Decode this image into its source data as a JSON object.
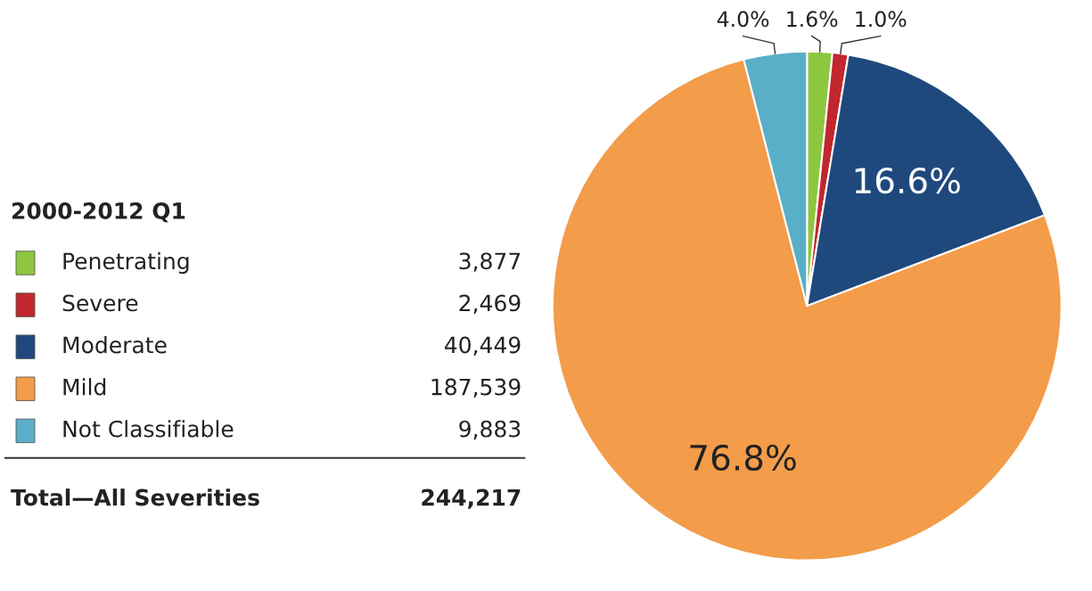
{
  "chart_data": {
    "type": "pie",
    "legend_title": "2000-2012 Q1",
    "categories": [
      "Penetrating",
      "Severe",
      "Moderate",
      "Mild",
      "Not Classifiable"
    ],
    "values": [
      1.6,
      1.0,
      16.6,
      76.8,
      4.0
    ],
    "colors": [
      "#8dc63f",
      "#c1272d",
      "#1f497d",
      "#f39c4a",
      "#5aafc8"
    ],
    "value_labels": [
      "1.6%",
      "1.0%",
      "16.6%",
      "76.8%",
      "4.0%"
    ],
    "annotations": [
      "3,877",
      "2,469",
      "40,449",
      "187,539",
      "9,883",
      "Total—All Severities",
      "244,217"
    ],
    "legend": "left"
  }
}
